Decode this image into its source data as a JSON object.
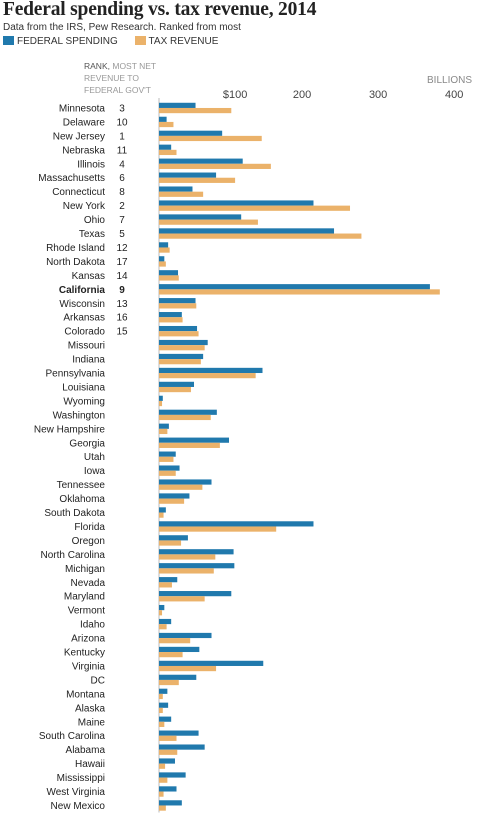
{
  "title": "Federal spending vs. tax revenue, 2014",
  "subtitle": "Data from the IRS, Pew Research. Ranked from most",
  "legend": {
    "spending": "FEDERAL SPENDING",
    "revenue": "TAX REVENUE"
  },
  "colors": {
    "spending": "#2079ad",
    "revenue": "#ebb26a",
    "axis": "#bbbbbb"
  },
  "rank_header": {
    "lead": "RANK,",
    "rest": "MOST NET REVENUE TO FEDERAL GOV'T"
  },
  "unit_label": "BILLIONS",
  "highlight": "California",
  "chart_data": {
    "type": "bar",
    "orientation": "horizontal",
    "xlim": [
      0,
      400
    ],
    "ticks": [
      0,
      100,
      200,
      300,
      400
    ],
    "tick_labels": [
      "",
      "$100",
      "200",
      "300",
      "400"
    ],
    "series": [
      {
        "name": "FEDERAL SPENDING",
        "key": "spending"
      },
      {
        "name": "TAX REVENUE",
        "key": "revenue"
      }
    ],
    "rows": [
      {
        "state": "Minnesota",
        "rank": "3",
        "spending": 48,
        "revenue": 95
      },
      {
        "state": "Delaware",
        "rank": "10",
        "spending": 10,
        "revenue": 19
      },
      {
        "state": "New Jersey",
        "rank": "1",
        "spending": 83,
        "revenue": 135
      },
      {
        "state": "Nebraska",
        "rank": "11",
        "spending": 16,
        "revenue": 23
      },
      {
        "state": "Illinois",
        "rank": "4",
        "spending": 110,
        "revenue": 147
      },
      {
        "state": "Massachusetts",
        "rank": "6",
        "spending": 75,
        "revenue": 100
      },
      {
        "state": "Connecticut",
        "rank": "8",
        "spending": 44,
        "revenue": 58
      },
      {
        "state": "New York",
        "rank": "2",
        "spending": 203,
        "revenue": 251
      },
      {
        "state": "Ohio",
        "rank": "7",
        "spending": 108,
        "revenue": 130
      },
      {
        "state": "Texas",
        "rank": "5",
        "spending": 230,
        "revenue": 266
      },
      {
        "state": "Rhode Island",
        "rank": "12",
        "spending": 12,
        "revenue": 14
      },
      {
        "state": "North Dakota",
        "rank": "17",
        "spending": 7,
        "revenue": 9
      },
      {
        "state": "Kansas",
        "rank": "14",
        "spending": 25,
        "revenue": 26
      },
      {
        "state": "California",
        "rank": "9",
        "spending": 356,
        "revenue": 369
      },
      {
        "state": "Wisconsin",
        "rank": "13",
        "spending": 48,
        "revenue": 49
      },
      {
        "state": "Arkansas",
        "rank": "16",
        "spending": 30,
        "revenue": 31
      },
      {
        "state": "Colorado",
        "rank": "15",
        "spending": 50,
        "revenue": 52
      },
      {
        "state": "Missouri",
        "rank": "",
        "spending": 64,
        "revenue": 60
      },
      {
        "state": "Indiana",
        "rank": "",
        "spending": 58,
        "revenue": 55
      },
      {
        "state": "Pennsylvania",
        "rank": "",
        "spending": 136,
        "revenue": 127
      },
      {
        "state": "Louisiana",
        "rank": "",
        "spending": 46,
        "revenue": 42
      },
      {
        "state": "Wyoming",
        "rank": "",
        "spending": 5,
        "revenue": 4
      },
      {
        "state": "Washington",
        "rank": "",
        "spending": 76,
        "revenue": 68
      },
      {
        "state": "New Hampshire",
        "rank": "",
        "spending": 13,
        "revenue": 11
      },
      {
        "state": "Georgia",
        "rank": "",
        "spending": 92,
        "revenue": 80
      },
      {
        "state": "Utah",
        "rank": "",
        "spending": 22,
        "revenue": 19
      },
      {
        "state": "Iowa",
        "rank": "",
        "spending": 27,
        "revenue": 22
      },
      {
        "state": "Tennessee",
        "rank": "",
        "spending": 69,
        "revenue": 57
      },
      {
        "state": "Oklahoma",
        "rank": "",
        "spending": 40,
        "revenue": 33
      },
      {
        "state": "South Dakota",
        "rank": "",
        "spending": 9,
        "revenue": 6
      },
      {
        "state": "Florida",
        "rank": "",
        "spending": 203,
        "revenue": 154
      },
      {
        "state": "Oregon",
        "rank": "",
        "spending": 38,
        "revenue": 29
      },
      {
        "state": "North Carolina",
        "rank": "",
        "spending": 98,
        "revenue": 74
      },
      {
        "state": "Michigan",
        "rank": "",
        "spending": 99,
        "revenue": 72
      },
      {
        "state": "Nevada",
        "rank": "",
        "spending": 24,
        "revenue": 17
      },
      {
        "state": "Maryland",
        "rank": "",
        "spending": 95,
        "revenue": 60
      },
      {
        "state": "Vermont",
        "rank": "",
        "spending": 7,
        "revenue": 4
      },
      {
        "state": "Idaho",
        "rank": "",
        "spending": 16,
        "revenue": 10
      },
      {
        "state": "Arizona",
        "rank": "",
        "spending": 69,
        "revenue": 41
      },
      {
        "state": "Kentucky",
        "rank": "",
        "spending": 53,
        "revenue": 31
      },
      {
        "state": "Virginia",
        "rank": "",
        "spending": 137,
        "revenue": 75
      },
      {
        "state": "DC",
        "rank": "",
        "spending": 49,
        "revenue": 26
      },
      {
        "state": "Montana",
        "rank": "",
        "spending": 11,
        "revenue": 5
      },
      {
        "state": "Alaska",
        "rank": "",
        "spending": 12,
        "revenue": 5
      },
      {
        "state": "Maine",
        "rank": "",
        "spending": 16,
        "revenue": 7
      },
      {
        "state": "South Carolina",
        "rank": "",
        "spending": 52,
        "revenue": 23
      },
      {
        "state": "Alabama",
        "rank": "",
        "spending": 60,
        "revenue": 24
      },
      {
        "state": "Hawaii",
        "rank": "",
        "spending": 21,
        "revenue": 8
      },
      {
        "state": "Mississippi",
        "rank": "",
        "spending": 35,
        "revenue": 11
      },
      {
        "state": "West Virginia",
        "rank": "",
        "spending": 23,
        "revenue": 6
      },
      {
        "state": "New Mexico",
        "rank": "",
        "spending": 30,
        "revenue": 9
      }
    ]
  }
}
